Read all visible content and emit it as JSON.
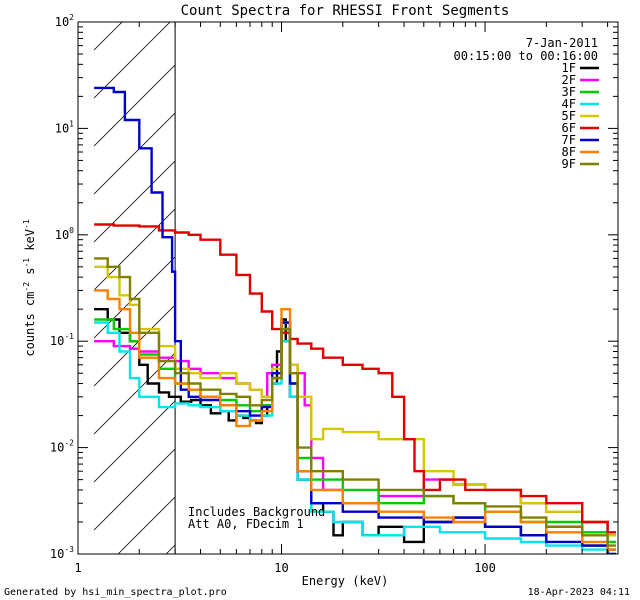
{
  "chart_data": {
    "type": "line",
    "title": "Count Spectra for RHESSI Front Segments",
    "xlabel": "Energy (keV)",
    "ylabel_parts": {
      "a": "counts cm",
      "b": "-2",
      "c": " s",
      "d": "-1",
      "e": " keV",
      "f": "-1"
    },
    "xscale": "log",
    "yscale": "log",
    "xlim": [
      1,
      450
    ],
    "ylim": [
      0.001,
      100
    ],
    "x_ticks": [
      {
        "value": 1,
        "label": "1"
      },
      {
        "value": 10,
        "label": "10"
      },
      {
        "value": 100,
        "label": "100"
      }
    ],
    "y_ticks": [
      {
        "value": 0.001,
        "base": "10",
        "exp": "-3"
      },
      {
        "value": 0.01,
        "base": "10",
        "exp": "-2"
      },
      {
        "value": 0.1,
        "base": "10",
        "exp": "-1"
      },
      {
        "value": 1,
        "base": "10",
        "exp": "0"
      },
      {
        "value": 10,
        "base": "10",
        "exp": "1"
      },
      {
        "value": 100,
        "base": "10",
        "exp": "2"
      }
    ],
    "date": "7-Jan-2011",
    "time_range": "00:15:00 to 00:16:00",
    "annotations": [
      "Includes Background",
      "Att A0, FDecim 1"
    ],
    "shaded_region_x": [
      1.2,
      3.0
    ],
    "legend_position": "top-right",
    "series": [
      {
        "name": "1F",
        "color": "#000000",
        "values": [
          [
            1.2,
            0.2
          ],
          [
            1.4,
            0.16
          ],
          [
            1.6,
            0.12
          ],
          [
            1.8,
            0.1
          ],
          [
            2.0,
            0.06
          ],
          [
            2.2,
            0.04
          ],
          [
            2.5,
            0.033
          ],
          [
            2.8,
            0.03
          ],
          [
            3.2,
            0.027
          ],
          [
            3.6,
            0.028
          ],
          [
            4.0,
            0.025
          ],
          [
            4.5,
            0.021
          ],
          [
            5.0,
            0.022
          ],
          [
            5.5,
            0.018
          ],
          [
            6.0,
            0.02
          ],
          [
            6.5,
            0.019
          ],
          [
            7.0,
            0.018
          ],
          [
            7.5,
            0.017
          ],
          [
            8.0,
            0.02
          ],
          [
            8.5,
            0.025
          ],
          [
            9.0,
            0.04
          ],
          [
            9.5,
            0.08
          ],
          [
            10.0,
            0.16
          ],
          [
            10.5,
            0.1
          ],
          [
            11.0,
            0.03
          ],
          [
            12,
            0.005
          ],
          [
            14,
            0.003
          ],
          [
            16,
            0.0025
          ],
          [
            18,
            0.0015
          ],
          [
            20,
            0.002
          ],
          [
            25,
            0.0015
          ],
          [
            30,
            0.0018
          ],
          [
            40,
            0.0013
          ],
          [
            50,
            0.002
          ],
          [
            70,
            0.0022
          ],
          [
            100,
            0.0018
          ],
          [
            150,
            0.0015
          ],
          [
            200,
            0.0018
          ],
          [
            300,
            0.0012
          ],
          [
            400,
            0.0011
          ]
        ]
      },
      {
        "name": "2F",
        "color": "#ff00ff",
        "values": [
          [
            1.2,
            0.1
          ],
          [
            1.5,
            0.09
          ],
          [
            1.8,
            0.085
          ],
          [
            2.0,
            0.08
          ],
          [
            2.5,
            0.07
          ],
          [
            3.0,
            0.065
          ],
          [
            3.5,
            0.055
          ],
          [
            4.0,
            0.05
          ],
          [
            5.0,
            0.045
          ],
          [
            6.0,
            0.04
          ],
          [
            7.0,
            0.035
          ],
          [
            8.0,
            0.03
          ],
          [
            8.5,
            0.05
          ],
          [
            9.0,
            0.06
          ],
          [
            10.0,
            0.15
          ],
          [
            11.0,
            0.06
          ],
          [
            12.0,
            0.05
          ],
          [
            13.0,
            0.025
          ],
          [
            14.0,
            0.008
          ],
          [
            16,
            0.004
          ],
          [
            20,
            0.003
          ],
          [
            30,
            0.0035
          ],
          [
            50,
            0.005
          ],
          [
            70,
            0.0045
          ],
          [
            100,
            0.004
          ],
          [
            150,
            0.003
          ],
          [
            200,
            0.0025
          ],
          [
            300,
            0.002
          ],
          [
            400,
            0.0015
          ]
        ]
      },
      {
        "name": "3F",
        "color": "#00cc00",
        "values": [
          [
            1.2,
            0.16
          ],
          [
            1.5,
            0.13
          ],
          [
            1.8,
            0.1
          ],
          [
            2.0,
            0.075
          ],
          [
            2.5,
            0.055
          ],
          [
            3.0,
            0.04
          ],
          [
            3.5,
            0.035
          ],
          [
            4.0,
            0.03
          ],
          [
            5.0,
            0.028
          ],
          [
            6.0,
            0.025
          ],
          [
            7.0,
            0.022
          ],
          [
            8.0,
            0.025
          ],
          [
            9.0,
            0.045
          ],
          [
            10.0,
            0.13
          ],
          [
            11.0,
            0.04
          ],
          [
            12.0,
            0.008
          ],
          [
            14,
            0.005
          ],
          [
            20,
            0.004
          ],
          [
            30,
            0.003
          ],
          [
            50,
            0.0035
          ],
          [
            70,
            0.003
          ],
          [
            100,
            0.0025
          ],
          [
            150,
            0.002
          ],
          [
            200,
            0.002
          ],
          [
            300,
            0.0016
          ],
          [
            400,
            0.0013
          ]
        ]
      },
      {
        "name": "4F",
        "color": "#00e5ee",
        "values": [
          [
            1.2,
            0.15
          ],
          [
            1.4,
            0.12
          ],
          [
            1.6,
            0.08
          ],
          [
            1.8,
            0.045
          ],
          [
            2.0,
            0.03
          ],
          [
            2.5,
            0.024
          ],
          [
            3.0,
            0.026
          ],
          [
            3.5,
            0.025
          ],
          [
            4.0,
            0.024
          ],
          [
            5.0,
            0.022
          ],
          [
            6.0,
            0.02
          ],
          [
            7.0,
            0.018
          ],
          [
            8.0,
            0.02
          ],
          [
            9.0,
            0.04
          ],
          [
            10.0,
            0.1
          ],
          [
            11,
            0.03
          ],
          [
            12,
            0.005
          ],
          [
            14,
            0.0025
          ],
          [
            18,
            0.002
          ],
          [
            25,
            0.0015
          ],
          [
            40,
            0.0018
          ],
          [
            60,
            0.0016
          ],
          [
            100,
            0.0014
          ],
          [
            150,
            0.0013
          ],
          [
            200,
            0.0012
          ],
          [
            300,
            0.0011
          ],
          [
            400,
            0.001
          ]
        ]
      },
      {
        "name": "5F",
        "color": "#d4c800",
        "values": [
          [
            1.2,
            0.5
          ],
          [
            1.4,
            0.4
          ],
          [
            1.6,
            0.27
          ],
          [
            1.8,
            0.22
          ],
          [
            2.0,
            0.13
          ],
          [
            2.5,
            0.09
          ],
          [
            3.0,
            0.055
          ],
          [
            3.5,
            0.05
          ],
          [
            4.0,
            0.045
          ],
          [
            5.0,
            0.05
          ],
          [
            6.0,
            0.04
          ],
          [
            7.0,
            0.035
          ],
          [
            8.0,
            0.03
          ],
          [
            9.0,
            0.055
          ],
          [
            10.0,
            0.15
          ],
          [
            11,
            0.06
          ],
          [
            12,
            0.03
          ],
          [
            14,
            0.012
          ],
          [
            16,
            0.015
          ],
          [
            20,
            0.014
          ],
          [
            30,
            0.012
          ],
          [
            50,
            0.006
          ],
          [
            70,
            0.0045
          ],
          [
            100,
            0.004
          ],
          [
            150,
            0.003
          ],
          [
            200,
            0.0025
          ],
          [
            300,
            0.002
          ],
          [
            400,
            0.0015
          ]
        ]
      },
      {
        "name": "6F",
        "color": "#e00000",
        "values": [
          [
            1.2,
            1.25
          ],
          [
            1.5,
            1.22
          ],
          [
            2.0,
            1.2
          ],
          [
            2.5,
            1.1
          ],
          [
            3.0,
            1.05
          ],
          [
            3.5,
            1.0
          ],
          [
            4.0,
            0.9
          ],
          [
            5.0,
            0.65
          ],
          [
            6.0,
            0.42
          ],
          [
            7.0,
            0.28
          ],
          [
            8.0,
            0.19
          ],
          [
            9.0,
            0.13
          ],
          [
            10.0,
            0.12
          ],
          [
            11.0,
            0.105
          ],
          [
            12.0,
            0.095
          ],
          [
            14.0,
            0.085
          ],
          [
            16,
            0.07
          ],
          [
            20,
            0.06
          ],
          [
            25,
            0.055
          ],
          [
            30,
            0.05
          ],
          [
            35,
            0.03
          ],
          [
            40,
            0.012
          ],
          [
            45,
            0.006
          ],
          [
            50,
            0.004
          ],
          [
            60,
            0.005
          ],
          [
            80,
            0.004
          ],
          [
            100,
            0.004
          ],
          [
            150,
            0.0035
          ],
          [
            200,
            0.003
          ],
          [
            300,
            0.002
          ],
          [
            400,
            0.0016
          ]
        ]
      },
      {
        "name": "7F",
        "color": "#0000cc",
        "values": [
          [
            1.2,
            24
          ],
          [
            1.5,
            22
          ],
          [
            1.7,
            12
          ],
          [
            2.0,
            6.5
          ],
          [
            2.3,
            2.5
          ],
          [
            2.6,
            0.95
          ],
          [
            2.9,
            0.45
          ],
          [
            3.0,
            0.1
          ],
          [
            3.2,
            0.035
          ],
          [
            3.5,
            0.03
          ],
          [
            4.0,
            0.028
          ],
          [
            5.0,
            0.025
          ],
          [
            6.0,
            0.022
          ],
          [
            7.0,
            0.02
          ],
          [
            8.0,
            0.024
          ],
          [
            9.0,
            0.05
          ],
          [
            10.0,
            0.15
          ],
          [
            11,
            0.04
          ],
          [
            12,
            0.006
          ],
          [
            14,
            0.003
          ],
          [
            20,
            0.0025
          ],
          [
            30,
            0.0022
          ],
          [
            50,
            0.002
          ],
          [
            70,
            0.0022
          ],
          [
            100,
            0.0018
          ],
          [
            150,
            0.0015
          ],
          [
            200,
            0.0013
          ],
          [
            300,
            0.0012
          ],
          [
            400,
            0.001
          ]
        ]
      },
      {
        "name": "8F",
        "color": "#ff7f00",
        "values": [
          [
            1.2,
            0.3
          ],
          [
            1.4,
            0.25
          ],
          [
            1.6,
            0.2
          ],
          [
            1.8,
            0.12
          ],
          [
            2.0,
            0.07
          ],
          [
            2.5,
            0.045
          ],
          [
            3.0,
            0.04
          ],
          [
            3.5,
            0.035
          ],
          [
            4.0,
            0.03
          ],
          [
            5.0,
            0.025
          ],
          [
            6.0,
            0.016
          ],
          [
            7.0,
            0.018
          ],
          [
            8.0,
            0.022
          ],
          [
            9.0,
            0.045
          ],
          [
            10.0,
            0.2
          ],
          [
            11,
            0.05
          ],
          [
            12,
            0.006
          ],
          [
            14,
            0.004
          ],
          [
            20,
            0.003
          ],
          [
            30,
            0.0025
          ],
          [
            50,
            0.0022
          ],
          [
            70,
            0.002
          ],
          [
            100,
            0.0025
          ],
          [
            150,
            0.002
          ],
          [
            200,
            0.0016
          ],
          [
            300,
            0.0013
          ],
          [
            400,
            0.0011
          ]
        ]
      },
      {
        "name": "9F",
        "color": "#808000",
        "values": [
          [
            1.2,
            0.6
          ],
          [
            1.4,
            0.5
          ],
          [
            1.6,
            0.4
          ],
          [
            1.8,
            0.25
          ],
          [
            2.0,
            0.12
          ],
          [
            2.5,
            0.065
          ],
          [
            3.0,
            0.05
          ],
          [
            3.5,
            0.04
          ],
          [
            4.0,
            0.035
          ],
          [
            5.0,
            0.032
          ],
          [
            6.0,
            0.03
          ],
          [
            7.0,
            0.025
          ],
          [
            8.0,
            0.028
          ],
          [
            9.0,
            0.045
          ],
          [
            10.0,
            0.13
          ],
          [
            11,
            0.05
          ],
          [
            12,
            0.01
          ],
          [
            14,
            0.006
          ],
          [
            20,
            0.005
          ],
          [
            30,
            0.004
          ],
          [
            50,
            0.0035
          ],
          [
            70,
            0.003
          ],
          [
            100,
            0.0028
          ],
          [
            150,
            0.0022
          ],
          [
            200,
            0.0018
          ],
          [
            300,
            0.0015
          ],
          [
            400,
            0.0012
          ]
        ]
      }
    ]
  },
  "footer": {
    "generated_by": "Generated by hsi_min_spectra_plot.pro",
    "timestamp": "18-Apr-2023 04:11"
  }
}
